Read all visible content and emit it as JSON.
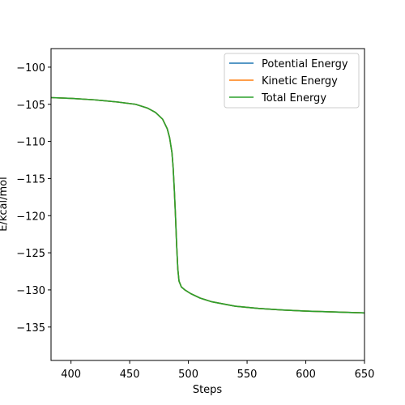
{
  "chart_data": {
    "type": "line",
    "title": "",
    "xlabel": "Steps",
    "ylabel": "E/kcal/mol",
    "xlim": [
      383,
      650
    ],
    "ylim": [
      -139.5,
      -97.5
    ],
    "xticks": [
      400,
      450,
      500,
      550,
      600,
      650
    ],
    "yticks": [
      -100,
      -105,
      -110,
      -115,
      -120,
      -125,
      -130,
      -135
    ],
    "grid": false,
    "legend_position": "top-right",
    "series": [
      {
        "name": "Potential Energy",
        "color": "#1f77b4",
        "x": [
          383,
          400,
          420,
          440,
          455,
          465,
          472,
          478,
          482,
          484,
          486,
          487,
          488,
          489,
          490,
          491,
          492,
          494,
          497,
          502,
          510,
          520,
          540,
          560,
          580,
          600,
          620,
          650
        ],
        "y": [
          -104.1,
          -104.2,
          -104.4,
          -104.7,
          -105.0,
          -105.5,
          -106.1,
          -107.0,
          -108.3,
          -109.5,
          -111.5,
          -113.5,
          -116.5,
          -120.0,
          -124.0,
          -127.2,
          -128.8,
          -129.6,
          -130.0,
          -130.5,
          -131.1,
          -131.6,
          -132.2,
          -132.5,
          -132.7,
          -132.85,
          -132.95,
          -133.1
        ]
      },
      {
        "name": "Kinetic Energy",
        "color": "#ff7f0e",
        "x": [
          383,
          400,
          420,
          440,
          455,
          465,
          472,
          478,
          482,
          484,
          486,
          487,
          488,
          489,
          490,
          491,
          492,
          494,
          497,
          502,
          510,
          520,
          540,
          560,
          580,
          600,
          620,
          650
        ],
        "y": [
          -104.1,
          -104.2,
          -104.4,
          -104.7,
          -105.0,
          -105.5,
          -106.1,
          -107.0,
          -108.3,
          -109.5,
          -111.5,
          -113.5,
          -116.5,
          -120.0,
          -124.0,
          -127.2,
          -128.8,
          -129.6,
          -130.0,
          -130.5,
          -131.1,
          -131.6,
          -132.2,
          -132.5,
          -132.7,
          -132.85,
          -132.95,
          -133.1
        ]
      },
      {
        "name": "Total Energy",
        "color": "#2ca02c",
        "x": [
          383,
          400,
          420,
          440,
          455,
          465,
          472,
          478,
          482,
          484,
          486,
          487,
          488,
          489,
          490,
          491,
          492,
          494,
          497,
          502,
          510,
          520,
          540,
          560,
          580,
          600,
          620,
          650
        ],
        "y": [
          -104.1,
          -104.2,
          -104.4,
          -104.7,
          -105.0,
          -105.5,
          -106.1,
          -107.0,
          -108.3,
          -109.5,
          -111.5,
          -113.5,
          -116.5,
          -120.0,
          -124.0,
          -127.2,
          -128.8,
          -129.6,
          -130.0,
          -130.5,
          -131.1,
          -131.6,
          -132.2,
          -132.5,
          -132.7,
          -132.85,
          -132.95,
          -133.1
        ]
      }
    ]
  }
}
